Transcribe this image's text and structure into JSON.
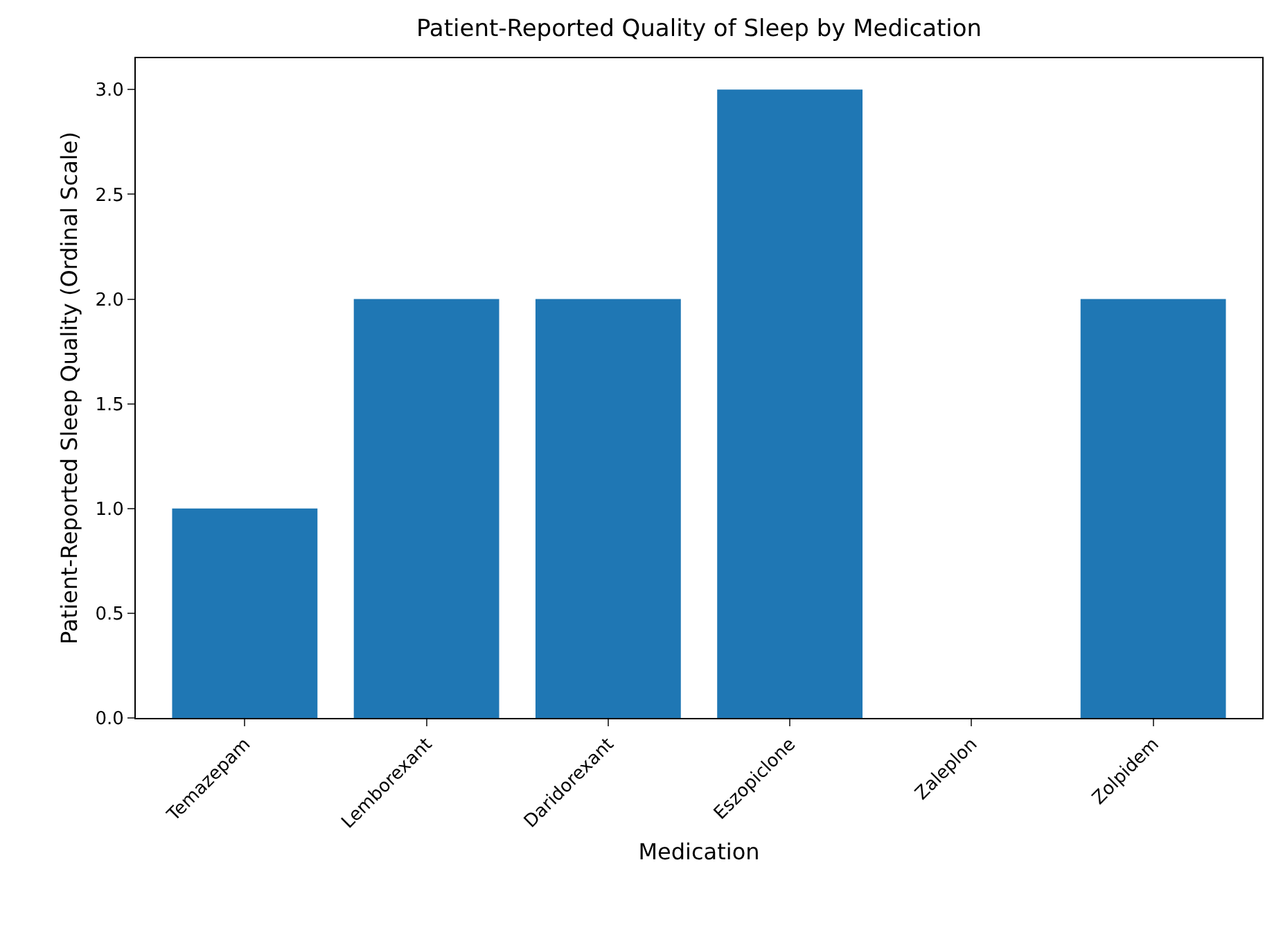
{
  "chart_data": {
    "type": "bar",
    "title": "Patient-Reported Quality of Sleep by Medication",
    "xlabel": "Medication",
    "ylabel": "Patient-Reported Sleep Quality (Ordinal Scale)",
    "categories": [
      "Temazepam",
      "Lemborexant",
      "Daridorexant",
      "Eszopiclone",
      "Zaleplon",
      "Zolpidem"
    ],
    "values": [
      1,
      2,
      2,
      3,
      0,
      2
    ],
    "color": "#1f77b4",
    "ylim": [
      0,
      3.15
    ],
    "yticks": [
      {
        "value": 0,
        "label": "0.0"
      },
      {
        "value": 0.5,
        "label": "0.5"
      },
      {
        "value": 1,
        "label": "1.0"
      },
      {
        "value": 1.5,
        "label": "1.5"
      },
      {
        "value": 2,
        "label": "2.0"
      },
      {
        "value": 2.5,
        "label": "2.5"
      },
      {
        "value": 3,
        "label": "3.0"
      }
    ]
  }
}
